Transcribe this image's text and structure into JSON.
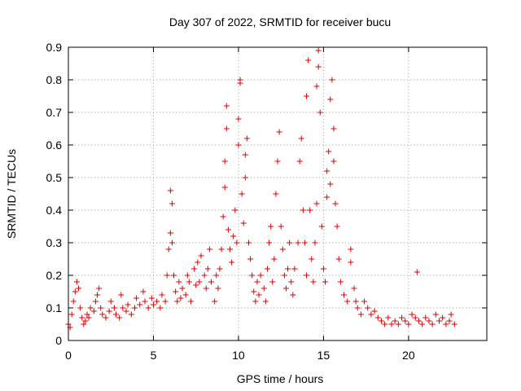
{
  "chart_data": {
    "type": "scatter",
    "title": "Day 307 of 2022, SRMTID for receiver bucu",
    "xlabel": "GPS time / hours",
    "ylabel": "SRMTID / TECUs",
    "xlim": [
      0,
      24.6
    ],
    "ylim": [
      0,
      0.9
    ],
    "xticks": [
      "0",
      "5",
      "10",
      "15",
      "20"
    ],
    "yticks": [
      "0",
      "0.1",
      "0.2",
      "0.3",
      "0.4",
      "0.5",
      "0.6",
      "0.7",
      "0.8",
      "0.9"
    ],
    "grid": true,
    "marker": "plus",
    "series_color": "#e00000",
    "series": [
      {
        "name": "SRMTID",
        "points": [
          [
            0.0,
            0.05
          ],
          [
            0.1,
            0.04
          ],
          [
            0.2,
            0.08
          ],
          [
            0.3,
            0.12
          ],
          [
            0.4,
            0.15
          ],
          [
            0.5,
            0.18
          ],
          [
            0.6,
            0.16
          ],
          [
            0.7,
            0.1
          ],
          [
            0.8,
            0.07
          ],
          [
            0.9,
            0.05
          ],
          [
            1.0,
            0.06
          ],
          [
            1.1,
            0.08
          ],
          [
            1.2,
            0.07
          ],
          [
            1.3,
            0.1
          ],
          [
            1.5,
            0.09
          ],
          [
            1.6,
            0.12
          ],
          [
            1.7,
            0.14
          ],
          [
            1.8,
            0.16
          ],
          [
            1.9,
            0.1
          ],
          [
            2.0,
            0.08
          ],
          [
            2.2,
            0.07
          ],
          [
            2.4,
            0.09
          ],
          [
            2.5,
            0.12
          ],
          [
            2.7,
            0.1
          ],
          [
            2.8,
            0.08
          ],
          [
            3.0,
            0.07
          ],
          [
            3.1,
            0.14
          ],
          [
            3.2,
            0.1
          ],
          [
            3.4,
            0.09
          ],
          [
            3.5,
            0.11
          ],
          [
            3.7,
            0.08
          ],
          [
            3.9,
            0.1
          ],
          [
            4.0,
            0.13
          ],
          [
            4.2,
            0.11
          ],
          [
            4.4,
            0.15
          ],
          [
            4.5,
            0.12
          ],
          [
            4.7,
            0.1
          ],
          [
            4.9,
            0.13
          ],
          [
            5.0,
            0.11
          ],
          [
            5.2,
            0.12
          ],
          [
            5.4,
            0.1
          ],
          [
            5.5,
            0.14
          ],
          [
            5.7,
            0.12
          ],
          [
            5.8,
            0.2
          ],
          [
            5.9,
            0.28
          ],
          [
            6.0,
            0.33
          ],
          [
            6.0,
            0.46
          ],
          [
            6.1,
            0.42
          ],
          [
            6.1,
            0.3
          ],
          [
            6.2,
            0.2
          ],
          [
            6.3,
            0.15
          ],
          [
            6.4,
            0.12
          ],
          [
            6.5,
            0.18
          ],
          [
            6.6,
            0.13
          ],
          [
            6.7,
            0.16
          ],
          [
            6.9,
            0.14
          ],
          [
            7.0,
            0.2
          ],
          [
            7.1,
            0.18
          ],
          [
            7.2,
            0.12
          ],
          [
            7.4,
            0.22
          ],
          [
            7.5,
            0.17
          ],
          [
            7.6,
            0.24
          ],
          [
            7.7,
            0.18
          ],
          [
            7.8,
            0.26
          ],
          [
            8.0,
            0.2
          ],
          [
            8.1,
            0.16
          ],
          [
            8.2,
            0.22
          ],
          [
            8.3,
            0.28
          ],
          [
            8.4,
            0.18
          ],
          [
            8.6,
            0.12
          ],
          [
            8.7,
            0.2
          ],
          [
            8.8,
            0.16
          ],
          [
            8.9,
            0.22
          ],
          [
            9.0,
            0.28
          ],
          [
            9.1,
            0.38
          ],
          [
            9.2,
            0.47
          ],
          [
            9.2,
            0.55
          ],
          [
            9.3,
            0.65
          ],
          [
            9.3,
            0.72
          ],
          [
            9.4,
            0.34
          ],
          [
            9.5,
            0.28
          ],
          [
            9.6,
            0.24
          ],
          [
            9.7,
            0.32
          ],
          [
            9.8,
            0.4
          ],
          [
            9.9,
            0.3
          ],
          [
            10.0,
            0.6
          ],
          [
            10.0,
            0.68
          ],
          [
            10.1,
            0.79
          ],
          [
            10.1,
            0.8
          ],
          [
            10.2,
            0.45
          ],
          [
            10.3,
            0.36
          ],
          [
            10.4,
            0.5
          ],
          [
            10.4,
            0.57
          ],
          [
            10.5,
            0.62
          ],
          [
            10.6,
            0.3
          ],
          [
            10.7,
            0.25
          ],
          [
            10.8,
            0.2
          ],
          [
            10.9,
            0.15
          ],
          [
            11.0,
            0.12
          ],
          [
            11.1,
            0.18
          ],
          [
            11.2,
            0.14
          ],
          [
            11.3,
            0.2
          ],
          [
            11.5,
            0.16
          ],
          [
            11.6,
            0.12
          ],
          [
            11.7,
            0.22
          ],
          [
            11.8,
            0.3
          ],
          [
            11.9,
            0.35
          ],
          [
            12.0,
            0.18
          ],
          [
            12.1,
            0.25
          ],
          [
            12.2,
            0.45
          ],
          [
            12.3,
            0.55
          ],
          [
            12.4,
            0.64
          ],
          [
            12.5,
            0.35
          ],
          [
            12.6,
            0.28
          ],
          [
            12.7,
            0.2
          ],
          [
            12.8,
            0.16
          ],
          [
            12.9,
            0.22
          ],
          [
            13.0,
            0.3
          ],
          [
            13.1,
            0.18
          ],
          [
            13.2,
            0.14
          ],
          [
            13.3,
            0.22
          ],
          [
            13.5,
            0.3
          ],
          [
            13.6,
            0.55
          ],
          [
            13.7,
            0.62
          ],
          [
            13.8,
            0.4
          ],
          [
            13.9,
            0.3
          ],
          [
            14.0,
            0.2
          ],
          [
            14.0,
            0.75
          ],
          [
            14.1,
            0.86
          ],
          [
            14.2,
            0.4
          ],
          [
            14.3,
            0.25
          ],
          [
            14.4,
            0.18
          ],
          [
            14.5,
            0.3
          ],
          [
            14.6,
            0.42
          ],
          [
            14.6,
            0.78
          ],
          [
            14.7,
            0.89
          ],
          [
            14.7,
            0.84
          ],
          [
            14.8,
            0.7
          ],
          [
            14.9,
            0.35
          ],
          [
            15.0,
            0.22
          ],
          [
            15.1,
            0.18
          ],
          [
            15.2,
            0.44
          ],
          [
            15.2,
            0.52
          ],
          [
            15.3,
            0.58
          ],
          [
            15.4,
            0.48
          ],
          [
            15.4,
            0.74
          ],
          [
            15.5,
            0.8
          ],
          [
            15.6,
            0.65
          ],
          [
            15.6,
            0.55
          ],
          [
            15.7,
            0.42
          ],
          [
            15.8,
            0.35
          ],
          [
            15.9,
            0.25
          ],
          [
            16.0,
            0.18
          ],
          [
            16.2,
            0.14
          ],
          [
            16.4,
            0.12
          ],
          [
            16.6,
            0.24
          ],
          [
            16.6,
            0.28
          ],
          [
            16.8,
            0.16
          ],
          [
            16.9,
            0.12
          ],
          [
            17.0,
            0.1
          ],
          [
            17.2,
            0.08
          ],
          [
            17.4,
            0.12
          ],
          [
            17.6,
            0.1
          ],
          [
            17.8,
            0.08
          ],
          [
            18.0,
            0.09
          ],
          [
            18.2,
            0.07
          ],
          [
            18.4,
            0.06
          ],
          [
            18.6,
            0.05
          ],
          [
            18.8,
            0.07
          ],
          [
            19.0,
            0.05
          ],
          [
            19.2,
            0.06
          ],
          [
            19.4,
            0.05
          ],
          [
            19.6,
            0.07
          ],
          [
            19.8,
            0.06
          ],
          [
            20.0,
            0.05
          ],
          [
            20.2,
            0.08
          ],
          [
            20.4,
            0.07
          ],
          [
            20.5,
            0.21
          ],
          [
            20.6,
            0.06
          ],
          [
            20.8,
            0.05
          ],
          [
            21.0,
            0.07
          ],
          [
            21.2,
            0.06
          ],
          [
            21.4,
            0.05
          ],
          [
            21.6,
            0.08
          ],
          [
            21.8,
            0.06
          ],
          [
            22.0,
            0.07
          ],
          [
            22.2,
            0.05
          ],
          [
            22.4,
            0.06
          ],
          [
            22.5,
            0.08
          ],
          [
            22.7,
            0.05
          ]
        ]
      }
    ]
  }
}
